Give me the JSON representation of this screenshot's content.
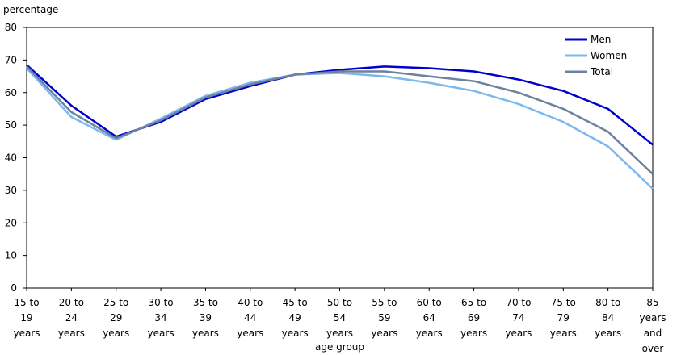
{
  "chart_data": {
    "type": "line",
    "ylabel": "percentage",
    "xlabel": "age group",
    "ylim": [
      0,
      80
    ],
    "yticks": [
      "0",
      "10",
      "20",
      "30",
      "40",
      "50",
      "60",
      "70",
      "80"
    ],
    "categories": [
      [
        "15 to",
        "19",
        "years"
      ],
      [
        "20 to",
        "24",
        "years"
      ],
      [
        "25 to",
        "29",
        "years"
      ],
      [
        "30 to",
        "34",
        "years"
      ],
      [
        "35 to",
        "39",
        "years"
      ],
      [
        "40 to",
        "44",
        "years"
      ],
      [
        "45 to",
        "49",
        "years"
      ],
      [
        "50 to",
        "54",
        "years"
      ],
      [
        "55 to",
        "59",
        "years"
      ],
      [
        "60 to",
        "64",
        "years"
      ],
      [
        "65 to",
        "69",
        "years"
      ],
      [
        "70 to",
        "74",
        "years"
      ],
      [
        "75 to",
        "79",
        "years"
      ],
      [
        "80 to",
        "84",
        "years"
      ],
      [
        "85",
        "years",
        "and",
        "over"
      ]
    ],
    "legend_position": "top-right",
    "grid": false,
    "series": [
      {
        "name": "Men",
        "color": "#0000cc",
        "values": [
          68.5,
          56,
          46.5,
          51,
          58,
          62,
          65.5,
          67,
          68,
          67.5,
          66.5,
          64,
          60.5,
          55,
          44
        ]
      },
      {
        "name": "Women",
        "color": "#7ab8f0",
        "values": [
          67.5,
          52.5,
          45.5,
          52,
          59,
          63,
          65.5,
          66,
          65,
          63,
          60.5,
          56.5,
          51,
          43.5,
          30.5
        ]
      },
      {
        "name": "Total",
        "color": "#6e819e",
        "values": [
          68,
          54,
          46,
          51.5,
          58.5,
          62.5,
          65.5,
          66.5,
          66.5,
          65,
          63.5,
          60,
          55,
          48,
          35
        ]
      }
    ]
  }
}
